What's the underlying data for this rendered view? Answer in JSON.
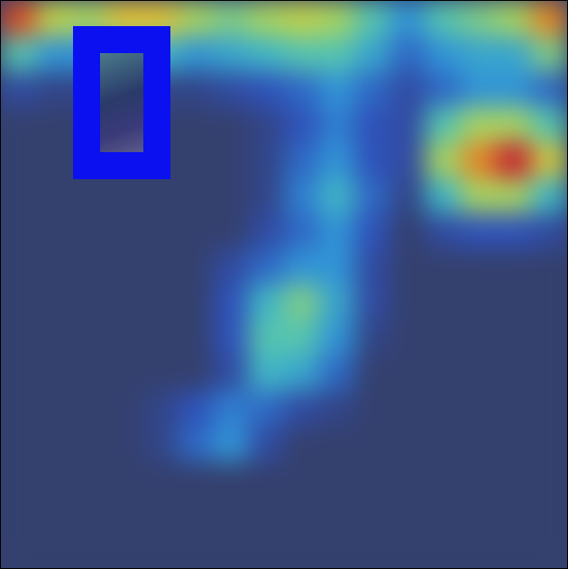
{
  "chart_data": {
    "type": "heatmap",
    "tick_labels": false,
    "grid": false,
    "value_range": [
      0,
      1
    ],
    "cells": [
      [
        0.9,
        0.6,
        0.55,
        0.7,
        0.7,
        0.55,
        0.5,
        0.55,
        0.6,
        0.55,
        0.45,
        0.3,
        0.45,
        0.5,
        0.55,
        0.8
      ],
      [
        0.45,
        0.3,
        0.3,
        0.4,
        0.4,
        0.3,
        0.35,
        0.4,
        0.45,
        0.45,
        0.35,
        0.2,
        0.3,
        0.35,
        0.35,
        0.5
      ],
      [
        0.1,
        0.05,
        0.05,
        0.05,
        0.05,
        0.05,
        0.1,
        0.15,
        0.2,
        0.3,
        0.2,
        0.1,
        0.2,
        0.3,
        0.3,
        0.2
      ],
      [
        0,
        0,
        0,
        0,
        0,
        0,
        0,
        0.05,
        0.15,
        0.25,
        0.15,
        0.1,
        0.45,
        0.55,
        0.55,
        0.45
      ],
      [
        0,
        0,
        0,
        0,
        0,
        0,
        0,
        0.05,
        0.2,
        0.3,
        0.15,
        0.1,
        0.55,
        0.8,
        1.0,
        0.65
      ],
      [
        0,
        0,
        0,
        0,
        0,
        0,
        0,
        0.05,
        0.25,
        0.4,
        0.2,
        0.05,
        0.4,
        0.55,
        0.55,
        0.4
      ],
      [
        0,
        0,
        0,
        0,
        0,
        0,
        0,
        0.1,
        0.2,
        0.3,
        0.15,
        0,
        0.1,
        0.15,
        0.15,
        0.1
      ],
      [
        0,
        0,
        0,
        0,
        0,
        0,
        0.1,
        0.2,
        0.3,
        0.3,
        0.1,
        0,
        0,
        0,
        0,
        0
      ],
      [
        0,
        0,
        0,
        0,
        0,
        0,
        0.15,
        0.4,
        0.5,
        0.35,
        0.1,
        0,
        0,
        0,
        0,
        0
      ],
      [
        0,
        0,
        0,
        0,
        0,
        0,
        0.15,
        0.45,
        0.45,
        0.3,
        0.05,
        0,
        0,
        0,
        0,
        0
      ],
      [
        0,
        0,
        0,
        0,
        0,
        0,
        0.1,
        0.4,
        0.35,
        0.2,
        0,
        0,
        0,
        0,
        0,
        0
      ],
      [
        0,
        0,
        0,
        0,
        0.05,
        0.15,
        0.25,
        0.2,
        0.1,
        0.05,
        0,
        0,
        0,
        0,
        0,
        0
      ],
      [
        0,
        0,
        0,
        0,
        0.05,
        0.2,
        0.3,
        0.1,
        0,
        0,
        0,
        0,
        0,
        0,
        0,
        0
      ],
      [
        0,
        0,
        0,
        0,
        0,
        0,
        0,
        0,
        0,
        0,
        0,
        0,
        0,
        0,
        0,
        0
      ],
      [
        0,
        0,
        0,
        0,
        0,
        0,
        0,
        0,
        0,
        0,
        0,
        0,
        0,
        0,
        0,
        0
      ],
      [
        0,
        0,
        0,
        0,
        0,
        0,
        0,
        0,
        0,
        0,
        0,
        0,
        0,
        0,
        0,
        0
      ]
    ]
  }
}
